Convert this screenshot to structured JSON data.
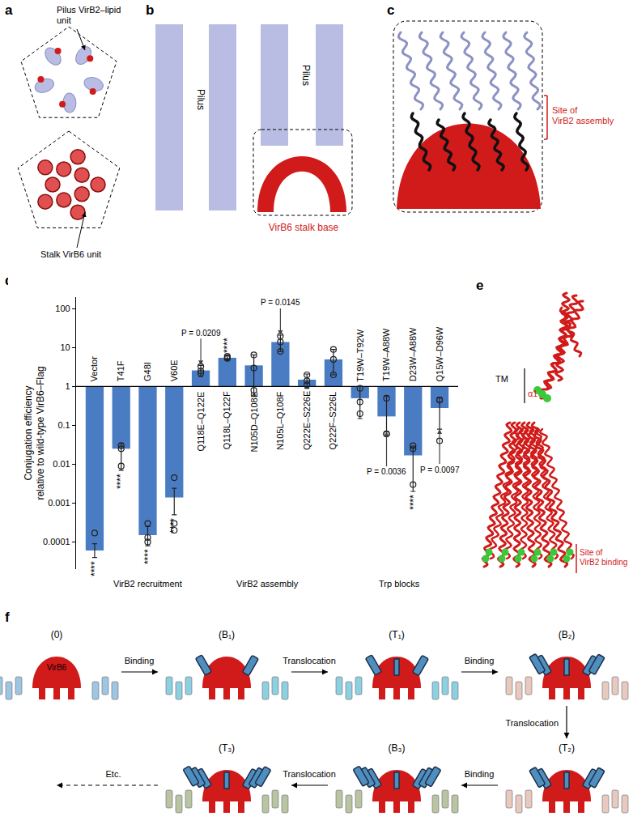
{
  "panels": {
    "a": {
      "label": "a",
      "top_text": [
        "Pilus VirB2–lipid",
        "unit"
      ],
      "bottom_text": [
        "Stalk VirB6 unit"
      ]
    },
    "b": {
      "label": "b",
      "left_text": "Pilus",
      "right_text": "Pilus",
      "base_text": "VirB6 stalk base"
    },
    "c": {
      "label": "c",
      "site_text": [
        "Site of",
        "VirB2 assembly"
      ]
    },
    "e": {
      "label": "e",
      "tm": "TM",
      "helix": "α1",
      "site_text": [
        "Site of",
        "VirB2 binding"
      ]
    },
    "f": {
      "label": "f",
      "states": [
        "(0)",
        "(B₁)",
        "(T₁)",
        "(B₂)",
        "(T₂)",
        "(B₃)",
        "(T₃)"
      ],
      "steps": [
        "Binding",
        "Translocation",
        "Binding",
        "Translocation",
        "Binding",
        "Translocation"
      ],
      "more": "Etc.",
      "protein": "VirB6"
    }
  },
  "chart_data": {
    "panel": "d",
    "type": "bar",
    "categories": [
      "Vector",
      "T41F",
      "G48I",
      "V60E",
      "Q118E–Q122E",
      "Q118L–Q122F",
      "N105D–Q108E",
      "N105L–Q108F",
      "Q222E–S226E",
      "Q222F–S226L",
      "T19W–T92W",
      "T19W–A88W",
      "D23W–A88W",
      "Q15W–D96W"
    ],
    "values": [
      6e-05,
      0.025,
      0.00015,
      0.0014,
      2.6,
      5.5,
      3.5,
      14,
      1.5,
      5,
      0.5,
      0.17,
      0.017,
      0.28
    ],
    "base": 1,
    "error_plus": [
      3e-05,
      0.01,
      0.0001,
      0.001,
      0.9,
      0.6,
      3,
      7,
      0.6,
      4,
      0.5,
      0.4,
      0.01,
      0.25
    ],
    "error_minus": [
      2e-05,
      0.018,
      7e-05,
      0.0009,
      0.8,
      0.6,
      2.9,
      6,
      0.6,
      3,
      0.35,
      0.1,
      0.015,
      0.2
    ],
    "replicates": [
      [
        0.00017
      ],
      [
        0.03,
        0.025,
        0.009
      ],
      [
        0.0003,
        0.00013,
        0.0001
      ],
      [
        0.0045,
        0.0003,
        0.0002
      ],
      [
        3.3,
        2.5,
        2.2
      ],
      [
        6,
        5.5,
        5.3
      ],
      [
        6.5,
        3,
        0.8
      ],
      [
        20,
        14,
        8
      ],
      [
        2,
        1.4,
        1.1
      ],
      [
        9,
        5,
        2
      ],
      [
        0.9,
        0.4,
        0.2
      ],
      [
        0.5,
        0.06,
        0.06
      ],
      [
        0.03,
        0.025,
        0.003
      ],
      [
        0.45,
        0.45,
        0.04
      ]
    ],
    "significance": [
      "****",
      "****",
      "****",
      "****",
      null,
      "****",
      null,
      null,
      null,
      null,
      null,
      null,
      "****",
      null
    ],
    "p_values": [
      {
        "category": "Q118E–Q122E",
        "label": "P = 0.0209"
      },
      {
        "category": "N105L–Q108F",
        "label": "P = 0.0145"
      },
      {
        "category": "T19W–A88W",
        "label": "P = 0.0036"
      },
      {
        "category": "Q15W–D96W",
        "label": "P = 0.0097"
      }
    ],
    "groups": [
      {
        "label": "VirB2 recruitment",
        "first": "T41F",
        "last": "V60E"
      },
      {
        "label": "VirB2 assembly",
        "first": "Q118E–Q122E",
        "last": "Q222F–S226L"
      },
      {
        "label": "Trp blocks",
        "first": "T19W–T92W",
        "last": "Q15W–D96W"
      }
    ],
    "color": "#4a7cc4",
    "y_label": [
      "Conjugation efficiency",
      "relative to wild-type VirB6–Flag"
    ],
    "ylim": [
      2e-05,
      200
    ],
    "yticks": [
      0.0001,
      0.001,
      0.01,
      0.1,
      1,
      10,
      100
    ],
    "log": "y",
    "tick_labels": "y",
    "grid": false
  }
}
